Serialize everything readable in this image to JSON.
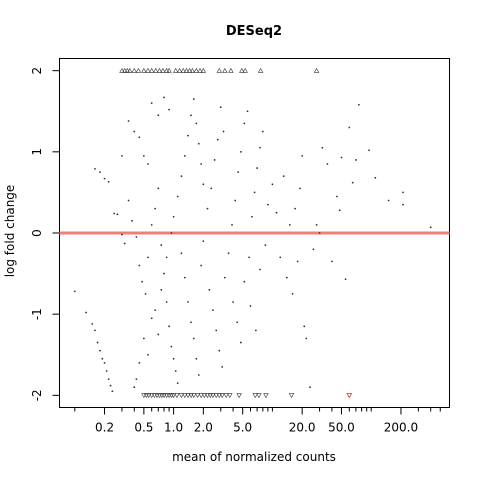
{
  "chart_data": {
    "type": "scatter",
    "title": "DESeq2",
    "xlabel": "mean of normalized counts",
    "ylabel": "log fold change",
    "x_scale": "log",
    "xlim": [
      0.07,
      620
    ],
    "ylim": [
      -2.15,
      2.15
    ],
    "x_ticks": [
      {
        "value": 0.2,
        "label": "0.2"
      },
      {
        "value": 0.5,
        "label": "0.5"
      },
      {
        "value": 1.0,
        "label": "1.0"
      },
      {
        "value": 2.0,
        "label": "2.0"
      },
      {
        "value": 5.0,
        "label": "5.0"
      },
      {
        "value": 20.0,
        "label": "20.0"
      },
      {
        "value": 50.0,
        "label": "50.0"
      },
      {
        "value": 200.0,
        "label": "200.0"
      }
    ],
    "x_minor_ticks": [
      0.1,
      0.3,
      0.4,
      0.6,
      0.7,
      0.8,
      0.9,
      3,
      4,
      6,
      7,
      8,
      9,
      10,
      30,
      40,
      60,
      70,
      80,
      90,
      100,
      300,
      400,
      500
    ],
    "y_ticks": [
      {
        "value": 2,
        "label": "2"
      },
      {
        "value": 1,
        "label": "1"
      },
      {
        "value": 0,
        "label": "0"
      },
      {
        "value": -1,
        "label": "-1"
      },
      {
        "value": -2,
        "label": "-2"
      }
    ],
    "reference_line": {
      "y": 0,
      "color": "#f07f74"
    },
    "colors": {
      "points": "#333333",
      "significant": "#e8423c",
      "axis": "#000000"
    },
    "capped_points_top": {
      "marker": "triangle-up",
      "y": 2,
      "x": [
        0.3,
        0.32,
        0.34,
        0.36,
        0.4,
        0.44,
        0.5,
        0.55,
        0.6,
        0.66,
        0.72,
        0.78,
        0.85,
        0.9,
        1.05,
        1.15,
        1.25,
        1.35,
        1.45,
        1.55,
        1.7,
        1.85,
        2.0,
        2.9,
        3.3,
        3.8,
        4.9,
        5.3,
        7.6,
        28.0
      ]
    },
    "capped_points_bottom": {
      "marker": "triangle-down",
      "y": -2,
      "x": [
        0.5,
        0.53,
        0.56,
        0.6,
        0.64,
        0.68,
        0.72,
        0.76,
        0.8,
        0.85,
        0.9,
        0.95,
        1.0,
        1.08,
        1.2,
        1.3,
        1.4,
        1.5,
        1.6,
        1.75,
        1.9,
        2.05,
        2.2,
        2.35,
        2.5,
        2.7,
        2.9,
        3.1,
        3.4,
        3.7,
        4.6,
        6.7,
        7.3,
        8.6,
        15.6
      ]
    },
    "significant_points": [
      {
        "x": 60.0,
        "y": -2,
        "marker": "triangle-down"
      }
    ],
    "points": [
      {
        "x": 0.1,
        "y": -0.72
      },
      {
        "x": 0.13,
        "y": -0.98
      },
      {
        "x": 0.15,
        "y": -1.12
      },
      {
        "x": 0.16,
        "y": -1.2
      },
      {
        "x": 0.17,
        "y": -1.35
      },
      {
        "x": 0.18,
        "y": -1.45
      },
      {
        "x": 0.19,
        "y": -1.55
      },
      {
        "x": 0.2,
        "y": -1.6
      },
      {
        "x": 0.21,
        "y": -1.7
      },
      {
        "x": 0.22,
        "y": -1.8
      },
      {
        "x": 0.23,
        "y": -1.88
      },
      {
        "x": 0.24,
        "y": -1.95
      },
      {
        "x": 0.16,
        "y": 0.79
      },
      {
        "x": 0.18,
        "y": 0.75
      },
      {
        "x": 0.2,
        "y": 0.67
      },
      {
        "x": 0.22,
        "y": 0.63
      },
      {
        "x": 0.25,
        "y": 0.24
      },
      {
        "x": 0.27,
        "y": 0.23
      },
      {
        "x": 0.3,
        "y": -0.02
      },
      {
        "x": 0.32,
        "y": -0.13
      },
      {
        "x": 0.3,
        "y": 0.95
      },
      {
        "x": 0.35,
        "y": 1.38
      },
      {
        "x": 0.4,
        "y": 1.25
      },
      {
        "x": 0.45,
        "y": 1.18
      },
      {
        "x": 0.5,
        "y": 0.95
      },
      {
        "x": 0.55,
        "y": 0.85
      },
      {
        "x": 0.6,
        "y": 1.6
      },
      {
        "x": 0.7,
        "y": 1.45
      },
      {
        "x": 0.8,
        "y": 1.67
      },
      {
        "x": 0.9,
        "y": 1.52
      },
      {
        "x": 0.35,
        "y": 0.4
      },
      {
        "x": 0.38,
        "y": 0.15
      },
      {
        "x": 0.42,
        "y": -0.05
      },
      {
        "x": 0.45,
        "y": -0.4
      },
      {
        "x": 0.48,
        "y": -0.6
      },
      {
        "x": 0.52,
        "y": -0.75
      },
      {
        "x": 0.55,
        "y": -0.3
      },
      {
        "x": 0.6,
        "y": 0.1
      },
      {
        "x": 0.65,
        "y": 0.3
      },
      {
        "x": 0.7,
        "y": 0.55
      },
      {
        "x": 0.75,
        "y": -0.15
      },
      {
        "x": 0.8,
        "y": -0.5
      },
      {
        "x": 0.85,
        "y": -0.85
      },
      {
        "x": 0.9,
        "y": -1.15
      },
      {
        "x": 0.95,
        "y": -1.4
      },
      {
        "x": 1.0,
        "y": -1.55
      },
      {
        "x": 1.05,
        "y": -1.7
      },
      {
        "x": 1.1,
        "y": -1.85
      },
      {
        "x": 0.6,
        "y": -1.05
      },
      {
        "x": 0.7,
        "y": -1.25
      },
      {
        "x": 0.5,
        "y": -1.3
      },
      {
        "x": 0.45,
        "y": -1.6
      },
      {
        "x": 0.42,
        "y": -1.8
      },
      {
        "x": 0.4,
        "y": -1.9
      },
      {
        "x": 0.55,
        "y": -1.5
      },
      {
        "x": 0.65,
        "y": -0.95
      },
      {
        "x": 0.75,
        "y": -0.7
      },
      {
        "x": 0.85,
        "y": -0.3
      },
      {
        "x": 0.95,
        "y": 0.0
      },
      {
        "x": 1.0,
        "y": 0.2
      },
      {
        "x": 1.1,
        "y": 0.45
      },
      {
        "x": 1.2,
        "y": 0.7
      },
      {
        "x": 1.3,
        "y": 0.95
      },
      {
        "x": 1.4,
        "y": 1.2
      },
      {
        "x": 1.5,
        "y": 1.45
      },
      {
        "x": 1.6,
        "y": 1.65
      },
      {
        "x": 1.7,
        "y": 1.35
      },
      {
        "x": 1.8,
        "y": 1.1
      },
      {
        "x": 1.9,
        "y": 0.85
      },
      {
        "x": 2.0,
        "y": 0.6
      },
      {
        "x": 1.2,
        "y": -0.25
      },
      {
        "x": 1.3,
        "y": -0.55
      },
      {
        "x": 1.4,
        "y": -0.85
      },
      {
        "x": 1.5,
        "y": -1.1
      },
      {
        "x": 1.6,
        "y": -1.3
      },
      {
        "x": 1.7,
        "y": -1.55
      },
      {
        "x": 1.8,
        "y": -1.75
      },
      {
        "x": 1.9,
        "y": -0.4
      },
      {
        "x": 2.0,
        "y": -0.1
      },
      {
        "x": 2.2,
        "y": 0.3
      },
      {
        "x": 2.4,
        "y": 0.55
      },
      {
        "x": 2.6,
        "y": 0.9
      },
      {
        "x": 2.8,
        "y": 1.15
      },
      {
        "x": 3.0,
        "y": 1.55
      },
      {
        "x": 3.2,
        "y": 1.25
      },
      {
        "x": 2.3,
        "y": -0.7
      },
      {
        "x": 2.5,
        "y": -0.95
      },
      {
        "x": 2.7,
        "y": -1.2
      },
      {
        "x": 2.9,
        "y": -1.45
      },
      {
        "x": 3.1,
        "y": -1.65
      },
      {
        "x": 3.3,
        "y": -0.55
      },
      {
        "x": 3.6,
        "y": -0.25
      },
      {
        "x": 3.9,
        "y": 0.1
      },
      {
        "x": 4.2,
        "y": 0.4
      },
      {
        "x": 4.5,
        "y": 0.75
      },
      {
        "x": 4.8,
        "y": 1.0
      },
      {
        "x": 5.2,
        "y": 1.35
      },
      {
        "x": 5.6,
        "y": 1.5
      },
      {
        "x": 4.0,
        "y": -0.85
      },
      {
        "x": 4.4,
        "y": -1.1
      },
      {
        "x": 4.8,
        "y": -1.35
      },
      {
        "x": 5.2,
        "y": -0.6
      },
      {
        "x": 5.8,
        "y": -0.3
      },
      {
        "x": 6.2,
        "y": 0.2
      },
      {
        "x": 6.6,
        "y": 0.5
      },
      {
        "x": 7.0,
        "y": 0.8
      },
      {
        "x": 7.5,
        "y": 1.05
      },
      {
        "x": 8.0,
        "y": 1.25
      },
      {
        "x": 6.0,
        "y": -0.9
      },
      {
        "x": 6.8,
        "y": -1.2
      },
      {
        "x": 7.5,
        "y": -0.45
      },
      {
        "x": 8.5,
        "y": -0.15
      },
      {
        "x": 9.0,
        "y": 0.35
      },
      {
        "x": 10.0,
        "y": 0.6
      },
      {
        "x": 11.0,
        "y": 0.25
      },
      {
        "x": 12.0,
        "y": -0.3
      },
      {
        "x": 13.0,
        "y": 0.7
      },
      {
        "x": 14.0,
        "y": -0.55
      },
      {
        "x": 15.0,
        "y": 0.1
      },
      {
        "x": 16.0,
        "y": -0.75
      },
      {
        "x": 17.0,
        "y": 0.3
      },
      {
        "x": 18.0,
        "y": -0.35
      },
      {
        "x": 19.0,
        "y": 0.55
      },
      {
        "x": 20.0,
        "y": 0.95
      },
      {
        "x": 21.0,
        "y": -1.15
      },
      {
        "x": 22.0,
        "y": -1.3
      },
      {
        "x": 24.0,
        "y": -1.9
      },
      {
        "x": 26.0,
        "y": -0.2
      },
      {
        "x": 28.0,
        "y": 0.1
      },
      {
        "x": 30.0,
        "y": 0.0
      },
      {
        "x": 32.0,
        "y": 1.05
      },
      {
        "x": 36.0,
        "y": 0.85
      },
      {
        "x": 40.0,
        "y": -0.35
      },
      {
        "x": 45.0,
        "y": 0.45
      },
      {
        "x": 48.0,
        "y": 0.28
      },
      {
        "x": 50.0,
        "y": 0.93
      },
      {
        "x": 55.0,
        "y": -0.57
      },
      {
        "x": 60.0,
        "y": 1.3
      },
      {
        "x": 65.0,
        "y": 0.62
      },
      {
        "x": 70.0,
        "y": 0.9
      },
      {
        "x": 75.0,
        "y": 1.58
      },
      {
        "x": 95.0,
        "y": 1.02
      },
      {
        "x": 110.0,
        "y": 0.68
      },
      {
        "x": 150.0,
        "y": 0.4
      },
      {
        "x": 210.0,
        "y": 0.5
      },
      {
        "x": 210.0,
        "y": 0.35
      },
      {
        "x": 400.0,
        "y": 0.07
      }
    ]
  }
}
